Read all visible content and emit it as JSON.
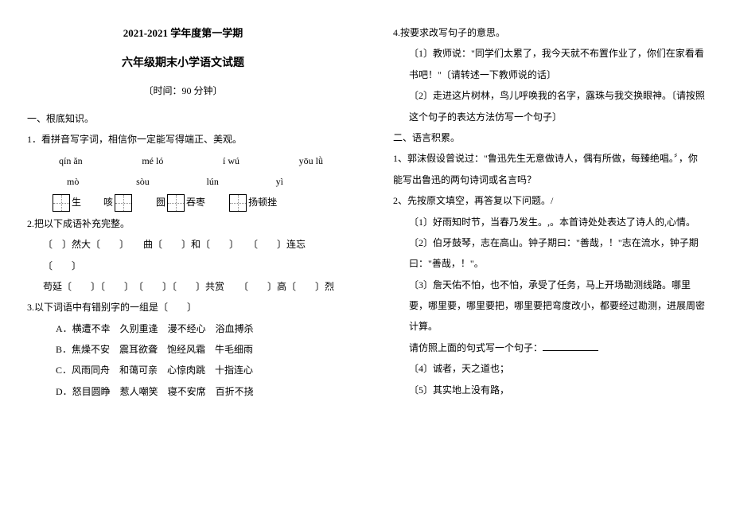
{
  "left": {
    "header": "2021-2021 学年度第一学期",
    "title": "六年级期末小学语文试题",
    "time": "〔时间：90 分钟〕",
    "sec1": "一、根底知识。",
    "q1": "1．看拼音写字词，相信你一定能写得端正、美观。",
    "py_row1": {
      "a": "qín ǎn",
      "b": "mé ló",
      "c": "í wú",
      "d": "yōu lǜ"
    },
    "py_row2": {
      "a": "mò",
      "b": "sòu",
      "c": "lún",
      "d": "yì"
    },
    "gr": {
      "a": "生",
      "b": "咳",
      "c": "囫",
      "d": "吞枣",
      "e": "扬顿挫"
    },
    "q2": "2.把以下成语补充完整。",
    "q2l1": "〔　〕然大〔　　〕　　曲〔　　〕和〔　　〕　　〔　　〕连忘〔　　〕",
    "q2l2": "苟延〔　　〕〔　　〕　〔　　〕〔　　〕共赏　　〔　　〕高〔　　〕烈",
    "q3": "3.以下词语中有错别字的一组是〔　　〕",
    "optA": "A．横遭不幸　久别重逢　漫不经心　浴血搏杀",
    "optB": "B．焦燥不安　震耳欲聋　饱经风霜　牛毛细雨",
    "optC": "C．风雨同舟　和蔼可亲　心惊肉跳　十指连心",
    "optD": "D．怒目圆睁　惹人嘲笑　寝不安席　百折不挠"
  },
  "right": {
    "q4": "4.按要求改写句子的意思。",
    "q4_1": "〔1〕教师说：\"同学们太累了，我今天就不布置作业了，你们在家看看书吧！\"〔请转述一下教师说的话〕",
    "q4_2": "〔2〕走进这片树林，鸟儿呼唤我的名字，露珠与我交换眼神。〔请按照这个句子的表达方法仿写一个句子〕",
    "sec2": "二、语言积累。",
    "s2_1": "1、郭沫假设曾说过：\"鲁迅先生无意做诗人，偶有所做，每臻绝唱。〞，你能写出鲁迅的两句诗词或名言吗？",
    "s2_2": "2、先按原文填空，再答复以下问题。/",
    "s2_2_1": "〔1〕好雨知时节，当春乃发生。,。本首诗处处表达了诗人的,心情。",
    "s2_2_2": "〔2〕伯牙鼓琴，志在高山。钟子期曰：\"善哉，！\"志在流水，钟子期曰：\"善哉，！\"。",
    "s2_2_3": "〔3〕詹天佑不怕，也不怕，承受了任务，马上开场勘测线路。哪里要，哪里要，哪里要把，哪里要把弯度改小，都要经过勘测，进展周密计算。",
    "imitate": "请仿照上面的句式写一个句子：",
    "s2_2_4": "〔4〕诚者，天之道也；",
    "s2_2_5": "〔5〕其实地上没有路，"
  }
}
